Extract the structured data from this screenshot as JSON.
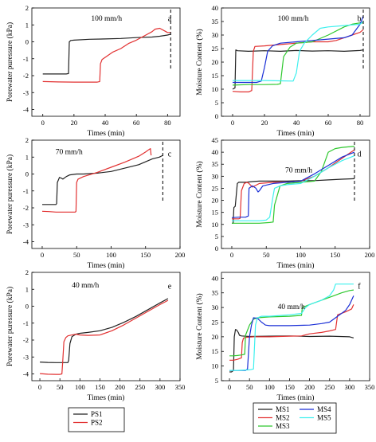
{
  "chart_data": [
    {
      "id": "a",
      "type": "line",
      "panel_letter": "a",
      "rate_label": "100 mm/h",
      "xlabel": "Times (min)",
      "ylabel": "Porewater puressure (kPa)",
      "xlim": [
        -7,
        88
      ],
      "ylim": [
        -4.4,
        2.0
      ],
      "xticks": [
        0,
        20,
        40,
        60,
        80
      ],
      "yticks": [
        -4,
        -3,
        -2,
        -1,
        0,
        1,
        2
      ],
      "grid": false,
      "dashed_x": 82,
      "series": [
        {
          "name": "PS1",
          "color": "#222222",
          "x": [
            0,
            5,
            10,
            15,
            16.5,
            17,
            18,
            20,
            30,
            40,
            50,
            60,
            70,
            75,
            80,
            82
          ],
          "y": [
            -1.9,
            -1.9,
            -1.9,
            -1.9,
            -1.88,
            0.0,
            0.08,
            0.1,
            0.15,
            0.17,
            0.2,
            0.25,
            0.28,
            0.33,
            0.4,
            0.45
          ]
        },
        {
          "name": "PS2",
          "color": "#e23131",
          "x": [
            0,
            10,
            20,
            30,
            35,
            36.5,
            37,
            38,
            45,
            50,
            55,
            60,
            65,
            70,
            72,
            75,
            78,
            80,
            82
          ],
          "y": [
            -2.35,
            -2.37,
            -2.38,
            -2.38,
            -2.38,
            -2.35,
            -1.3,
            -1.05,
            -0.6,
            -0.4,
            -0.1,
            0.1,
            0.35,
            0.6,
            0.75,
            0.8,
            0.65,
            0.55,
            0.55
          ]
        }
      ]
    },
    {
      "id": "b",
      "type": "line",
      "panel_letter": "b",
      "rate_label": "100 mm/h",
      "xlabel": "Times (min)",
      "ylabel": "Moisture Content (%)",
      "xlim": [
        -7,
        86
      ],
      "ylim": [
        0,
        40
      ],
      "xticks": [
        0,
        20,
        40,
        60,
        80
      ],
      "yticks": [
        0,
        5,
        10,
        15,
        20,
        25,
        30,
        35,
        40
      ],
      "grid": false,
      "dashed_x": 82,
      "series": [
        {
          "name": "MS1",
          "color": "#222222",
          "x": [
            0,
            1.5,
            2,
            3,
            10,
            20,
            30,
            40,
            50,
            60,
            70,
            80,
            82
          ],
          "y": [
            10,
            10.5,
            24.5,
            24.2,
            24,
            24.2,
            24,
            24.3,
            24.1,
            24.2,
            24,
            24.3,
            24.5
          ]
        },
        {
          "name": "MS2",
          "color": "#e23131",
          "x": [
            0,
            5,
            10,
            12,
            13,
            14,
            20,
            30,
            40,
            50,
            60,
            65,
            70,
            75,
            80,
            82
          ],
          "y": [
            9.2,
            9,
            9,
            9.5,
            24,
            25.8,
            26,
            26.5,
            27,
            27.5,
            27.5,
            28,
            29,
            30,
            31,
            32
          ]
        },
        {
          "name": "MS3",
          "color": "#2ec82e",
          "x": [
            0,
            10,
            20,
            28,
            30,
            32,
            36,
            40,
            50,
            60,
            70,
            75,
            80,
            82
          ],
          "y": [
            11.5,
            11.7,
            11.7,
            11.8,
            12,
            22,
            25.5,
            27,
            27.5,
            30,
            33,
            34,
            34.5,
            34.5
          ]
        },
        {
          "name": "MS4",
          "color": "#1a2fd6",
          "x": [
            0,
            5,
            10,
            15,
            18,
            20,
            22,
            25,
            30,
            40,
            50,
            60,
            70,
            75,
            80,
            82
          ],
          "y": [
            12.5,
            12.5,
            12.5,
            12.5,
            13,
            18,
            24,
            26,
            27,
            27.5,
            28,
            28.5,
            29,
            30,
            34,
            37
          ]
        },
        {
          "name": "MS5",
          "color": "#3ff0ee",
          "x": [
            0,
            10,
            20,
            30,
            38,
            40,
            42,
            45,
            50,
            55,
            60,
            70,
            80,
            82
          ],
          "y": [
            13.2,
            13.2,
            13.2,
            13.1,
            13,
            16,
            24,
            27,
            30,
            32.5,
            33,
            33.5,
            34,
            35
          ]
        }
      ]
    },
    {
      "id": "c",
      "type": "line",
      "panel_letter": "c",
      "rate_label": "70 mm/h",
      "xlabel": "Times (min)",
      "ylabel": "Porewater puressure (kPa)",
      "xlim": [
        -15,
        200
      ],
      "ylim": [
        -4.4,
        2.0
      ],
      "xticks": [
        0,
        50,
        100,
        150,
        200
      ],
      "yticks": [
        -4,
        -3,
        -2,
        -1,
        0,
        1,
        2
      ],
      "grid": false,
      "dashed_x": 175,
      "series": [
        {
          "name": "PS1",
          "color": "#222222",
          "x": [
            0,
            10,
            20,
            21,
            22,
            25,
            28,
            30,
            35,
            40,
            50,
            60,
            80,
            100,
            120,
            140,
            160,
            170,
            175
          ],
          "y": [
            -1.8,
            -1.8,
            -1.8,
            -1.75,
            -0.5,
            -0.2,
            -0.25,
            -0.3,
            -0.15,
            -0.05,
            0.0,
            0.0,
            0.05,
            0.15,
            0.35,
            0.55,
            0.9,
            1.0,
            1.1
          ]
        },
        {
          "name": "PS2",
          "color": "#e23131",
          "x": [
            0,
            10,
            20,
            30,
            40,
            48,
            49,
            50,
            52,
            60,
            80,
            100,
            120,
            140,
            150,
            155,
            157,
            158
          ],
          "y": [
            -2.2,
            -2.22,
            -2.25,
            -2.25,
            -2.25,
            -2.25,
            -2.2,
            -0.5,
            -0.3,
            -0.15,
            0.1,
            0.4,
            0.7,
            1.05,
            1.3,
            1.45,
            1.5,
            1.1
          ]
        }
      ]
    },
    {
      "id": "d",
      "type": "line",
      "panel_letter": "d",
      "rate_label": "70 mm/h",
      "xlabel": "Times (min)",
      "ylabel": "Moisture Content (%)",
      "xlim": [
        -15,
        200
      ],
      "ylim": [
        0,
        45
      ],
      "xticks": [
        0,
        50,
        100,
        150,
        200
      ],
      "yticks": [
        0,
        5,
        10,
        15,
        20,
        25,
        30,
        35,
        40,
        45
      ],
      "grid": false,
      "dashed_x": 178,
      "series": [
        {
          "name": "MS1",
          "color": "#222222",
          "x": [
            0,
            2,
            3,
            5,
            8,
            10,
            20,
            30,
            40,
            60,
            80,
            100,
            120,
            140,
            160,
            178
          ],
          "y": [
            10.5,
            10.5,
            17,
            17.5,
            27,
            27.5,
            27.5,
            27.8,
            28,
            28,
            28,
            28.2,
            28.2,
            28.5,
            28.8,
            29
          ]
        },
        {
          "name": "MS2",
          "color": "#e23131",
          "x": [
            0,
            10,
            12,
            14,
            18,
            22,
            25,
            30,
            40,
            60,
            80,
            100,
            120,
            140,
            160,
            178
          ],
          "y": [
            12.3,
            12.3,
            12.5,
            24,
            27,
            27.5,
            27,
            25.5,
            27,
            27.5,
            27.5,
            28,
            30,
            33.5,
            37.5,
            41
          ]
        },
        {
          "name": "MS3",
          "color": "#2ec82e",
          "x": [
            0,
            20,
            40,
            55,
            60,
            62,
            70,
            80,
            100,
            120,
            130,
            140,
            150,
            160,
            178
          ],
          "y": [
            10.5,
            10.5,
            10.5,
            10.8,
            11,
            18,
            26,
            27,
            27.5,
            28,
            32,
            40,
            41.5,
            42,
            42.5
          ]
        },
        {
          "name": "MS4",
          "color": "#1a2fd6",
          "x": [
            0,
            10,
            15,
            20,
            24,
            25,
            30,
            35,
            38,
            40,
            45,
            60,
            80,
            100,
            120,
            140,
            160,
            178
          ],
          "y": [
            12.8,
            13,
            13,
            13,
            13.5,
            25,
            26,
            25,
            23.5,
            24,
            26,
            27,
            27.5,
            28,
            31,
            34.5,
            38,
            40
          ]
        },
        {
          "name": "MS5",
          "color": "#3ff0ee",
          "x": [
            0,
            20,
            40,
            50,
            55,
            60,
            62,
            70,
            80,
            100,
            120,
            140,
            160,
            178
          ],
          "y": [
            11.5,
            11.5,
            11.5,
            11.8,
            13,
            22,
            25,
            26,
            26.5,
            27,
            30,
            33.5,
            36.5,
            38.5
          ]
        }
      ]
    },
    {
      "id": "e",
      "type": "line",
      "panel_letter": "e",
      "rate_label": "40 mm/h",
      "xlabel": "Times (min)",
      "ylabel": "Porewater puressure (kPa)",
      "xlim": [
        -20,
        350
      ],
      "ylim": [
        -4.4,
        2.0
      ],
      "xticks": [
        0,
        50,
        100,
        150,
        200,
        250,
        300,
        350
      ],
      "yticks": [
        -4,
        -3,
        -2,
        -1,
        0,
        1,
        2
      ],
      "grid": false,
      "dashed_x": null,
      "series": [
        {
          "name": "PS1",
          "color": "#222222",
          "x": [
            0,
            20,
            40,
            60,
            70,
            72,
            75,
            80,
            90,
            100,
            120,
            150,
            180,
            210,
            240,
            270,
            300,
            320
          ],
          "y": [
            -3.3,
            -3.32,
            -3.33,
            -3.33,
            -3.33,
            -3.2,
            -2.2,
            -1.8,
            -1.65,
            -1.6,
            -1.55,
            -1.45,
            -1.25,
            -0.95,
            -0.6,
            -0.2,
            0.2,
            0.45
          ]
        },
        {
          "name": "PS2",
          "color": "#e23131",
          "x": [
            0,
            20,
            40,
            50,
            55,
            57,
            60,
            65,
            70,
            80,
            90,
            100,
            120,
            150,
            180,
            210,
            240,
            270,
            300,
            320
          ],
          "y": [
            -3.98,
            -4.02,
            -4.03,
            -4.03,
            -4.0,
            -3.3,
            -2.1,
            -1.85,
            -1.75,
            -1.7,
            -1.65,
            -1.7,
            -1.72,
            -1.7,
            -1.45,
            -1.1,
            -0.7,
            -0.3,
            0.1,
            0.35
          ]
        }
      ]
    },
    {
      "id": "f",
      "type": "line",
      "panel_letter": "f",
      "rate_label": "40 mm/h",
      "xlabel": "Times (min)",
      "ylabel": "Moisture Content (%)",
      "xlim": [
        -20,
        350
      ],
      "ylim": [
        5,
        42
      ],
      "xticks": [
        0,
        50,
        100,
        150,
        200,
        250,
        300,
        350
      ],
      "yticks": [
        5,
        10,
        15,
        20,
        25,
        30,
        35,
        40
      ],
      "grid": false,
      "dashed_x": null,
      "series": [
        {
          "name": "MS1",
          "color": "#222222",
          "x": [
            0,
            5,
            10,
            12,
            15,
            18,
            22,
            25,
            30,
            50,
            100,
            150,
            200,
            250,
            300,
            310
          ],
          "y": [
            8,
            8,
            8.5,
            20,
            22.5,
            22.3,
            21.5,
            20.5,
            20.3,
            20.1,
            20.2,
            20.3,
            20.1,
            20.2,
            20,
            19.6
          ]
        },
        {
          "name": "MS2",
          "color": "#e23131",
          "x": [
            0,
            10,
            20,
            30,
            32,
            35,
            40,
            60,
            100,
            150,
            180,
            200,
            230,
            250,
            265,
            270,
            290,
            305,
            310
          ],
          "y": [
            12,
            12,
            12.3,
            12.8,
            18,
            19.5,
            19.8,
            20,
            20,
            20.2,
            20.3,
            21,
            21.5,
            22,
            22.5,
            27.5,
            28.5,
            29.5,
            31
          ]
        },
        {
          "name": "MS3",
          "color": "#2ec82e",
          "x": [
            0,
            10,
            20,
            30,
            38,
            40,
            50,
            60,
            70,
            100,
            150,
            180,
            182,
            200,
            230,
            260,
            280,
            300,
            310
          ],
          "y": [
            13.5,
            13.5,
            13.6,
            13.8,
            14,
            20.5,
            24,
            26,
            26.5,
            26.8,
            27,
            27.3,
            30,
            31,
            32.5,
            34,
            35,
            35.8,
            36
          ]
        },
        {
          "name": "MS4",
          "color": "#1a2fd6",
          "x": [
            0,
            20,
            40,
            45,
            50,
            55,
            60,
            70,
            80,
            90,
            100,
            150,
            200,
            230,
            250,
            270,
            290,
            300,
            310
          ],
          "y": [
            8.5,
            8.5,
            8.5,
            9,
            20,
            24,
            26.5,
            26.3,
            25,
            24,
            23.8,
            23.8,
            24,
            24.5,
            25,
            27,
            29,
            31,
            34
          ]
        },
        {
          "name": "MS5",
          "color": "#3ff0ee",
          "x": [
            0,
            20,
            50,
            60,
            62,
            65,
            70,
            80,
            100,
            150,
            180,
            190,
            200,
            230,
            250,
            260,
            265,
            280,
            300,
            310
          ],
          "y": [
            8.5,
            8.5,
            8.7,
            9,
            15,
            24,
            26.5,
            27,
            27,
            27.5,
            28,
            30,
            31,
            32.5,
            34,
            36,
            38,
            38,
            38,
            38
          ]
        }
      ]
    }
  ],
  "legends": [
    {
      "id": "legend-pressure",
      "entries": [
        {
          "name": "PS1",
          "color": "#222222"
        },
        {
          "name": "PS2",
          "color": "#e23131"
        }
      ]
    },
    {
      "id": "legend-moisture",
      "entries": [
        {
          "name": "MS1",
          "color": "#222222"
        },
        {
          "name": "MS4",
          "color": "#1a2fd6"
        },
        {
          "name": "MS2",
          "color": "#e23131"
        },
        {
          "name": "MS5",
          "color": "#3ff0ee"
        },
        {
          "name": "MS3",
          "color": "#2ec82e"
        }
      ]
    }
  ]
}
